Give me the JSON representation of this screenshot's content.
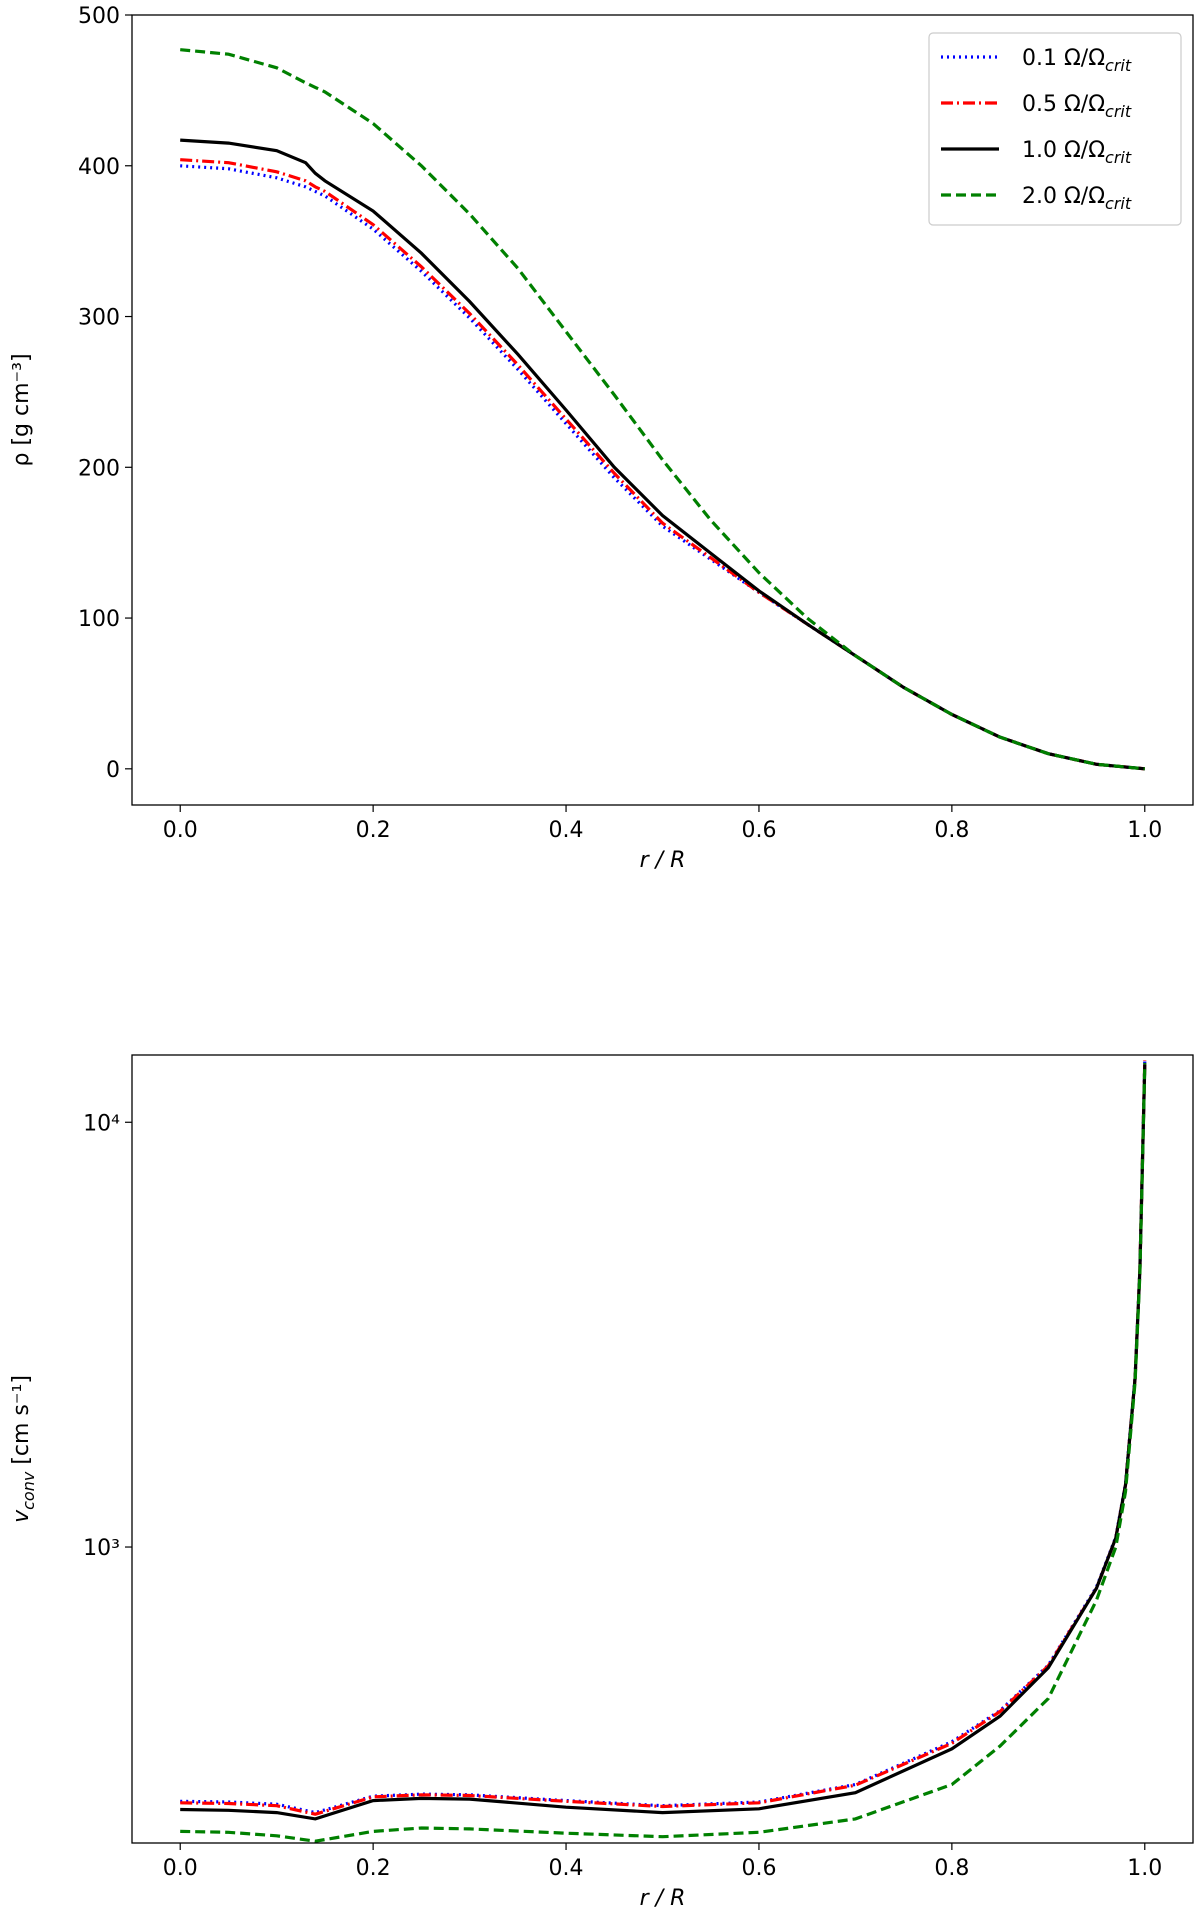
{
  "chart_data": [
    {
      "type": "line",
      "xlabel": "r / R",
      "ylabel": "ρ [g cm⁻³]",
      "x": [
        0,
        0.05,
        0.1,
        0.13,
        0.14,
        0.15,
        0.2,
        0.25,
        0.3,
        0.35,
        0.4,
        0.45,
        0.5,
        0.55,
        0.6,
        0.65,
        0.7,
        0.75,
        0.8,
        0.85,
        0.9,
        0.95,
        1.0
      ],
      "xlim": [
        -0.05,
        1.05
      ],
      "xticks": [
        {
          "value": 0,
          "label": "0.0"
        },
        0.2,
        0.4,
        0.6,
        0.8,
        {
          "value": 1,
          "label": "1.0"
        }
      ],
      "ylim": [
        -24,
        500
      ],
      "yticks": [
        0,
        100,
        200,
        300,
        400,
        500
      ],
      "legend": "upper right",
      "series": [
        {
          "name": "0.1 Ω/Ωcrit",
          "color": "#0000ff",
          "dash": "dotted",
          "values": [
            400,
            398,
            392,
            386,
            383,
            380,
            358,
            330,
            299,
            265,
            229,
            193,
            161,
            139,
            117,
            96,
            75,
            54,
            36,
            21,
            10,
            3,
            0
          ]
        },
        {
          "name": "0.5 Ω/Ωcrit",
          "color": "#ff0000",
          "dash": "dashdot",
          "values": [
            404,
            402,
            396,
            390,
            386,
            383,
            361,
            333,
            302,
            268,
            232,
            196,
            163,
            140,
            117,
            96,
            75,
            54,
            36,
            21,
            10,
            3,
            0
          ]
        },
        {
          "name": "1.0 Ω/Ωcrit",
          "color": "#000000",
          "dash": "solid",
          "values": [
            417,
            415,
            410,
            402,
            395,
            390,
            370,
            342,
            310,
            275,
            238,
            200,
            168,
            143,
            118,
            96,
            75,
            54,
            36,
            21,
            10,
            3,
            0
          ]
        },
        {
          "name": "2.0 Ω/Ωcrit",
          "color": "#008000",
          "dash": "dashed",
          "values": [
            477,
            474,
            465,
            455,
            452,
            449,
            428,
            400,
            368,
            332,
            290,
            248,
            205,
            165,
            130,
            100,
            75,
            54,
            36,
            21,
            10,
            3,
            0
          ]
        }
      ]
    },
    {
      "type": "line",
      "xlabel": "r / R",
      "ylabel_symbol": "v",
      "ylabel_subscript": "conv",
      "ylabel_unit": " [cm s⁻¹]",
      "log_y": true,
      "x": [
        0,
        0.05,
        0.1,
        0.14,
        0.2,
        0.25,
        0.3,
        0.4,
        0.5,
        0.6,
        0.7,
        0.8,
        0.85,
        0.9,
        0.95,
        0.97,
        0.98,
        0.99,
        0.995,
        1.0
      ],
      "xlim": [
        -0.05,
        1.05
      ],
      "xticks": [
        {
          "value": 0,
          "label": "0.0"
        },
        0.2,
        0.4,
        0.6,
        0.8,
        {
          "value": 1,
          "label": "1.0"
        }
      ],
      "ylim": [
        201,
        14400
      ],
      "yticks": [
        {
          "value": 1000,
          "label": "10³"
        },
        {
          "value": 10000,
          "label": "10⁴"
        }
      ],
      "series": [
        {
          "name": "0.1 Ω/Ωcrit",
          "color": "#0000ff",
          "dash": "dotted",
          "values": [
            252,
            251,
            248,
            237,
            259,
            262,
            261,
            253,
            246,
            251,
            276,
            348,
            412,
            527,
            805,
            1055,
            1410,
            2520,
            4520,
            14000
          ]
        },
        {
          "name": "0.5 Ω/Ωcrit",
          "color": "#ff0000",
          "dash": "dashdot",
          "values": [
            250,
            249,
            246,
            235,
            258,
            261,
            260,
            252,
            245,
            250,
            275,
            345,
            410,
            525,
            800,
            1050,
            1400,
            2500,
            4500,
            14000
          ]
        },
        {
          "name": "1.0 Ω/Ωcrit",
          "color": "#000000",
          "dash": "solid",
          "values": [
            241,
            240,
            237,
            229,
            253,
            256,
            255,
            244,
            237,
            242,
            264,
            335,
            400,
            520,
            800,
            1050,
            1400,
            2500,
            4500,
            13700
          ]
        },
        {
          "name": "2.0 Ω/Ωcrit",
          "color": "#008000",
          "dash": "dashed",
          "values": [
            214,
            213,
            209,
            203,
            214,
            218,
            217,
            212,
            208,
            213,
            229,
            276,
            340,
            440,
            750,
            1000,
            1350,
            2450,
            4400,
            13800
          ]
        }
      ]
    }
  ]
}
